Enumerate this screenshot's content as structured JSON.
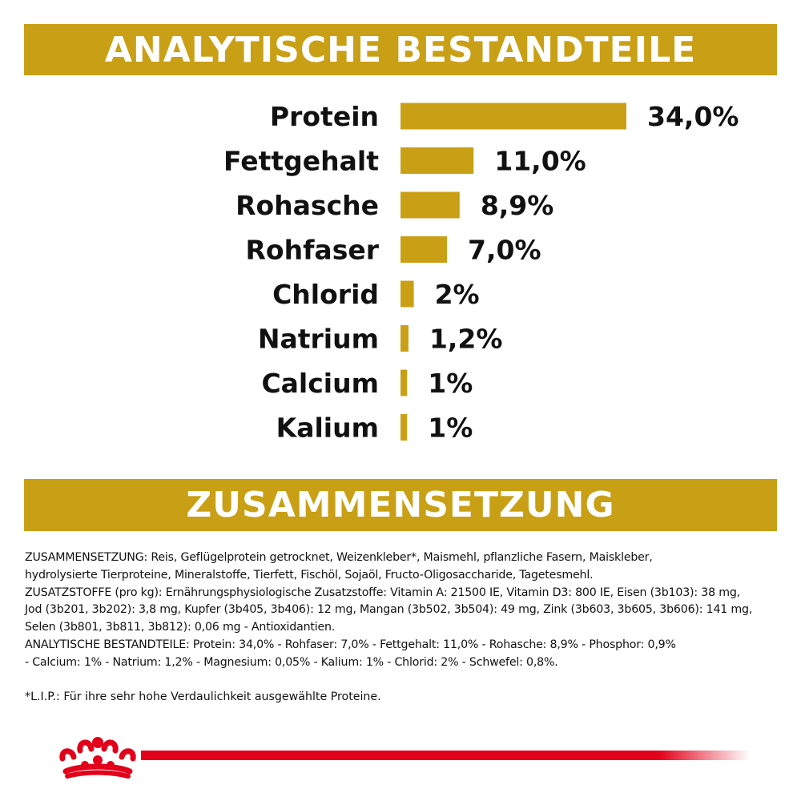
{
  "colors": {
    "gold": "#C9A015",
    "red": "#E2001A",
    "text": "#111111"
  },
  "header": {
    "title": "ANALYTISCHE BESTANDTEILE"
  },
  "section2": {
    "title": "ZUSAMMENSETZUNG"
  },
  "chart_data": {
    "type": "bar",
    "orientation": "horizontal",
    "title": "ANALYTISCHE BESTANDTEILE",
    "categories": [
      "Protein",
      "Fettgehalt",
      "Rohasche",
      "Rohfaser",
      "Chlorid",
      "Natrium",
      "Calcium",
      "Kalium"
    ],
    "values": [
      34.0,
      11.0,
      8.9,
      7.0,
      2,
      1.2,
      1,
      1
    ],
    "value_labels": [
      "34,0%",
      "11,0%",
      "8,9%",
      "7,0%",
      "2%",
      "1,2%",
      "1%",
      "1%"
    ],
    "unit": "%",
    "grid": false,
    "legend": "none",
    "bar_color": "#C9A015"
  },
  "composition": {
    "paragraph": "ZUSAMMENSETZUNG: Reis, Geflügelprotein getrocknet, Weizenkleber*, Maismehl, pflanzliche Fasern, Maiskleber,\nhydrolysierte Tierproteine, Mineralstoffe, Tierfett, Fischöl, Sojaöl, Fructo-Oligosaccharide, Tagetesmehl.\nZUSATZSTOFFE (pro kg): Ernährungsphysiologische Zusatzstoffe: Vitamin A: 21500 IE, Vitamin D3: 800 IE, Eisen (3b103): 38 mg,\nJod (3b201, 3b202): 3,8 mg, Kupfer (3b405, 3b406): 12 mg, Mangan (3b502, 3b504): 49 mg, Zink (3b603, 3b605, 3b606): 141 mg,\nSelen (3b801, 3b811, 3b812): 0,06 mg - Antioxidantien.\nANALYTISCHE BESTANDTEILE: Protein: 34,0% - Rohfaser: 7,0% - Fettgehalt: 11,0% - Rohasche: 8,9% - Phosphor: 0,9%\n- Calcium: 1% - Natrium: 1,2% - Magnesium: 0,05% - Kalium: 1% - Chlorid: 2% - Schwefel: 0,8%.",
    "footnote": "*L.I.P.: Für ihre sehr hohe Verdaulichkeit ausgewählte Proteine."
  },
  "logo": {
    "icon": "crown-icon"
  }
}
